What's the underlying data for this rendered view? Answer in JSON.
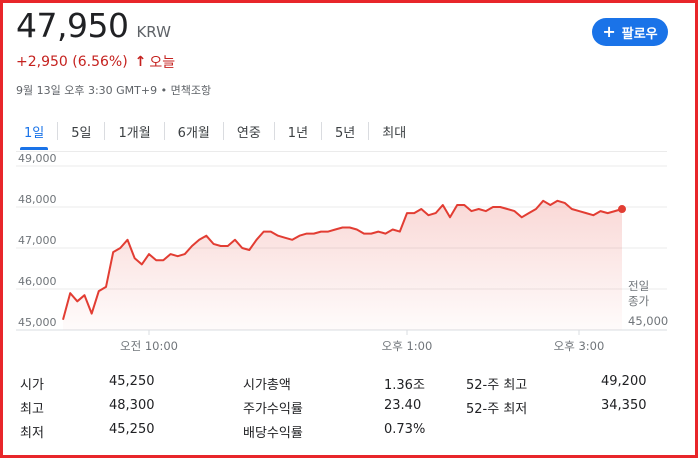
{
  "quote": {
    "price": "47,950",
    "currency": "KRW",
    "change": "+2,950 (6.56%)",
    "change_arrow": "↑",
    "change_period": "오늘",
    "meta": "9월 13일 오후 3:30 GMT+9 • 면책조항",
    "follow_label": "팔로우",
    "follow_icon": "plus-icon"
  },
  "tabs": [
    "1일",
    "5일",
    "1개월",
    "6개월",
    "연중",
    "1년",
    "5년",
    "최대"
  ],
  "active_tab": "1일",
  "colors": {
    "accent": "#1a73e8",
    "line": "#e23d33",
    "negative_text": "#c5221f"
  },
  "chart_data": {
    "type": "area",
    "y_ticks": [
      "49,000",
      "48,000",
      "47,000",
      "46,000",
      "45,000"
    ],
    "y_tick_values": [
      49000,
      48000,
      47000,
      46000,
      45000
    ],
    "ylim": [
      45000,
      49000
    ],
    "x_ticks": [
      "오전 10:00",
      "오후 1:00",
      "오후 3:00"
    ],
    "x_tick_times": [
      "10:00",
      "13:00",
      "15:00"
    ],
    "xlim": [
      "09:00",
      "15:30"
    ],
    "previous_close_label": [
      "전일",
      "종가"
    ],
    "previous_close_value": "45,000",
    "previous_close": 45000,
    "grid": true,
    "series": [
      {
        "x": [
          "09:00",
          "09:05",
          "09:10",
          "09:15",
          "09:20",
          "09:25",
          "09:30",
          "09:35",
          "09:40",
          "09:45",
          "09:50",
          "09:55",
          "10:00",
          "10:05",
          "10:10",
          "10:15",
          "10:20",
          "10:25",
          "10:30",
          "10:35",
          "10:40",
          "10:45",
          "10:50",
          "10:55",
          "11:00",
          "11:05",
          "11:10",
          "11:15",
          "11:20",
          "11:25",
          "11:30",
          "11:35",
          "11:40",
          "11:45",
          "11:50",
          "11:55",
          "12:00",
          "12:05",
          "12:10",
          "12:15",
          "12:20",
          "12:25",
          "12:30",
          "12:35",
          "12:40",
          "12:45",
          "12:50",
          "12:55",
          "13:00",
          "13:05",
          "13:10",
          "13:15",
          "13:20",
          "13:25",
          "13:30",
          "13:35",
          "13:40",
          "13:45",
          "13:50",
          "13:55",
          "14:00",
          "14:05",
          "14:10",
          "14:15",
          "14:20",
          "14:25",
          "14:30",
          "14:35",
          "14:40",
          "14:45",
          "14:50",
          "14:55",
          "15:00",
          "15:05",
          "15:10",
          "15:15",
          "15:20",
          "15:25",
          "15:30"
        ],
        "values": [
          45250,
          45900,
          45700,
          45850,
          45400,
          45950,
          46050,
          46900,
          47000,
          47200,
          46750,
          46600,
          46850,
          46700,
          46700,
          46850,
          46800,
          46850,
          47050,
          47200,
          47300,
          47100,
          47050,
          47050,
          47200,
          47000,
          46950,
          47200,
          47400,
          47400,
          47300,
          47250,
          47200,
          47300,
          47350,
          47350,
          47400,
          47400,
          47450,
          47500,
          47500,
          47450,
          47350,
          47350,
          47400,
          47350,
          47450,
          47400,
          47850,
          47850,
          47950,
          47800,
          47850,
          48050,
          47750,
          48050,
          48050,
          47900,
          47950,
          47900,
          48000,
          48000,
          47950,
          47900,
          47750,
          47850,
          47950,
          48150,
          48050,
          48150,
          48100,
          47950,
          47900,
          47850,
          47800,
          47900,
          47850,
          47900,
          47950
        ]
      }
    ]
  },
  "stats": [
    {
      "label": "시가",
      "value": "45,250"
    },
    {
      "label": "최고",
      "value": "48,300"
    },
    {
      "label": "최저",
      "value": "45,250"
    },
    {
      "label": "시가총액",
      "value": "1.36조"
    },
    {
      "label": "주가수익률",
      "value": "23.40"
    },
    {
      "label": "배당수익률",
      "value": "0.73%"
    },
    {
      "label": "52-주 최고",
      "value": "49,200"
    },
    {
      "label": "52-주 최저",
      "value": "34,350"
    }
  ]
}
